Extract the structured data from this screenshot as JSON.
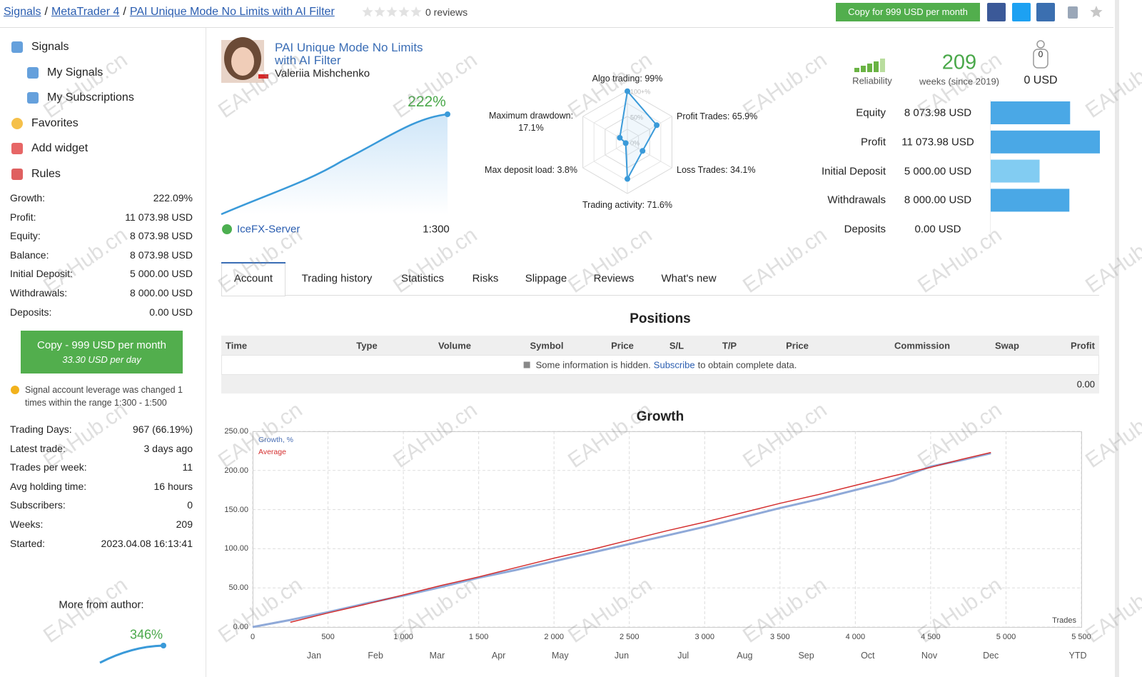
{
  "header": {
    "breadcrumbs": [
      "Signals",
      "MetaTrader 4",
      "PAI Unique Mode No Limits with AI Filter"
    ],
    "separator": "/",
    "reviews": "0 reviews",
    "copy_button": "Copy for 999 USD per month"
  },
  "watermark": "EAHub.cn",
  "sidebar": {
    "nav": [
      "Signals",
      "My Signals",
      "My Subscriptions",
      "Favorites",
      "Add widget",
      "Rules"
    ],
    "stats": [
      {
        "label": "Growth:",
        "value": "222.09%"
      },
      {
        "label": "Profit:",
        "value": "11 073.98 USD"
      },
      {
        "label": "Equity:",
        "value": "8 073.98 USD"
      },
      {
        "label": "Balance:",
        "value": "8 073.98 USD"
      },
      {
        "label": "Initial Deposit:",
        "value": "5 000.00 USD"
      },
      {
        "label": "Withdrawals:",
        "value": "8 000.00 USD"
      },
      {
        "label": "Deposits:",
        "value": "0.00 USD"
      }
    ],
    "copy_button": {
      "title": "Copy - 999 USD per month",
      "subtitle": "33.30 USD per day"
    },
    "notice": "Signal account leverage was changed 1 times within the range 1:300 - 1:500",
    "activity": [
      {
        "label": "Trading Days:",
        "value": "967 (66.19%)"
      },
      {
        "label": "Latest trade:",
        "value": "3 days ago"
      },
      {
        "label": "Trades per week:",
        "value": "11"
      },
      {
        "label": "Avg holding time:",
        "value": "16 hours"
      },
      {
        "label": "Subscribers:",
        "value": "0"
      },
      {
        "label": "Weeks:",
        "value": "209"
      },
      {
        "label": "Started:",
        "value": "2023.04.08 16:13:41"
      }
    ],
    "more_from_author": "More from author:",
    "author_growth": "346%"
  },
  "profile": {
    "title": "PAI Unique Mode No Limits with AI Filter",
    "author": "Valeriia Mishchenko",
    "growth": "222%",
    "server": "IceFX-Server",
    "leverage": "1:300"
  },
  "radar": {
    "axes": [
      {
        "label": "Algo trading: 99%",
        "value": 99
      },
      {
        "label": "Profit Trades: 65.9%",
        "value": 65.9
      },
      {
        "label": "Loss Trades: 34.1%",
        "value": 34.1
      },
      {
        "label": "Trading activity: 71.6%",
        "value": 71.6
      },
      {
        "label": "Max deposit load: 3.8%",
        "value": 3.8
      },
      {
        "label": "Maximum drawdown: 17.1%",
        "value": 17.1
      }
    ],
    "ticks": [
      {
        "value": 100,
        "label": "100+%"
      },
      {
        "value": 50,
        "label": "50%"
      },
      {
        "value": 0,
        "label": "0%"
      }
    ]
  },
  "summary": {
    "reliability": "Reliability",
    "weeks": "209",
    "weeks_label": "weeks (since 2019)",
    "subscribers": "0",
    "subscribers_funds": "0 USD",
    "bars": [
      {
        "label": "Equity",
        "value_label": "8 073.98 USD",
        "value": 8073.98,
        "color": "#4aa8e6"
      },
      {
        "label": "Profit",
        "value_label": "11 073.98 USD",
        "value": 11073.98,
        "color": "#4aa8e6"
      },
      {
        "label": "Initial Deposit",
        "value_label": "5 000.00 USD",
        "value": 5000,
        "color": "#82ccf2"
      },
      {
        "label": "Withdrawals",
        "value_label": "8 000.00 USD",
        "value": 8000,
        "color": "#4aa8e6"
      },
      {
        "label": "Deposits",
        "value_label": "0.00 USD",
        "value": 0,
        "color": "#4aa8e6"
      }
    ]
  },
  "tabs": [
    "Account",
    "Trading history",
    "Statistics",
    "Risks",
    "Slippage",
    "Reviews",
    "What's new"
  ],
  "active_tab": 0,
  "positions": {
    "title": "Positions",
    "columns": [
      "Time",
      "Type",
      "Volume",
      "Symbol",
      "Price",
      "S/L",
      "T/P",
      "Price",
      "Commission",
      "Swap",
      "Profit"
    ],
    "hidden_notice": "Some information is hidden.",
    "subscribe": "Subscribe",
    "hidden_tail": "to obtain complete data.",
    "total": "0.00"
  },
  "growth_chart": {
    "type": "line",
    "title": "Growth",
    "x": [
      0,
      250,
      500,
      750,
      1000,
      1250,
      1500,
      1750,
      2000,
      2250,
      2500,
      2750,
      3000,
      3250,
      3500,
      3750,
      4000,
      4250,
      4500,
      4700,
      4900
    ],
    "series": [
      {
        "name": "Growth, %",
        "color": "#8fa9d8",
        "values": [
          0,
          9,
          19,
          30,
          40,
          51,
          63,
          73,
          84,
          95,
          106,
          117,
          128,
          140,
          152,
          163,
          175,
          187,
          205,
          213,
          222
        ]
      },
      {
        "name": "Average",
        "color": "#d42f2f",
        "values": [
          null,
          6,
          18,
          29,
          41,
          53,
          64,
          76,
          88,
          99,
          111,
          123,
          134,
          146,
          158,
          169,
          181,
          193,
          204,
          214,
          223
        ]
      }
    ],
    "xlim": [
      0,
      5500
    ],
    "ylim": [
      0,
      250
    ],
    "xticks": [
      0,
      500,
      {
        "value": 1000,
        "label": "1 000"
      },
      {
        "value": 1500,
        "label": "1 500"
      },
      {
        "value": 2000,
        "label": "2 000"
      },
      {
        "value": 2500,
        "label": "2 500"
      },
      {
        "value": 3000,
        "label": "3 000"
      },
      {
        "value": 3500,
        "label": "3 500"
      },
      {
        "value": 4000,
        "label": "4 000"
      },
      {
        "value": 4500,
        "label": "4 500"
      },
      {
        "value": 5000,
        "label": "5 000"
      },
      {
        "value": 5500,
        "label": "5 500"
      }
    ],
    "yticks": [
      {
        "value": 0,
        "label": "0.00"
      },
      {
        "value": 50,
        "label": "50.00"
      },
      {
        "value": 100,
        "label": "100.00"
      },
      {
        "value": 150,
        "label": "150.00"
      },
      {
        "value": 200,
        "label": "200.00"
      },
      {
        "value": 250,
        "label": "250.00"
      }
    ],
    "months": [
      "Jan",
      "Feb",
      "Mar",
      "Apr",
      "May",
      "Jun",
      "Jul",
      "Aug",
      "Sep",
      "Oct",
      "Nov",
      "Dec"
    ],
    "ytd": "YTD",
    "x_label": "Trades",
    "grid": true
  }
}
